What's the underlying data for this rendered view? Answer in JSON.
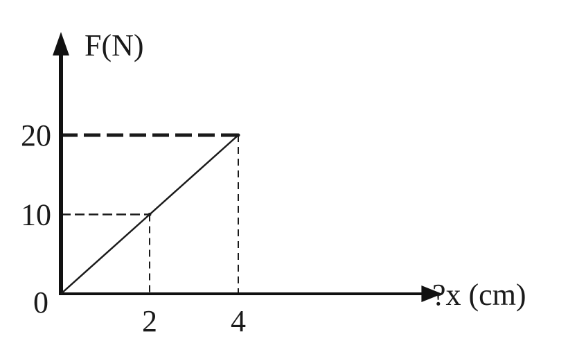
{
  "chart_data": {
    "type": "line",
    "xlabel": "?x (cm)",
    "ylabel": "F(N)",
    "origin_label": "0",
    "x_ticks": [
      {
        "value": 2,
        "label": "2"
      },
      {
        "value": 4,
        "label": "4"
      }
    ],
    "y_ticks": [
      {
        "value": 10,
        "label": "10"
      },
      {
        "value": 20,
        "label": "20"
      }
    ],
    "series": [
      {
        "x": [
          0,
          2,
          4
        ],
        "y": [
          0,
          10,
          20
        ]
      }
    ],
    "xlim": [
      0,
      8.6
    ],
    "ylim": [
      0,
      33
    ],
    "grid": false,
    "line_color": "#1a1a1a",
    "axis_color": "#111111"
  }
}
